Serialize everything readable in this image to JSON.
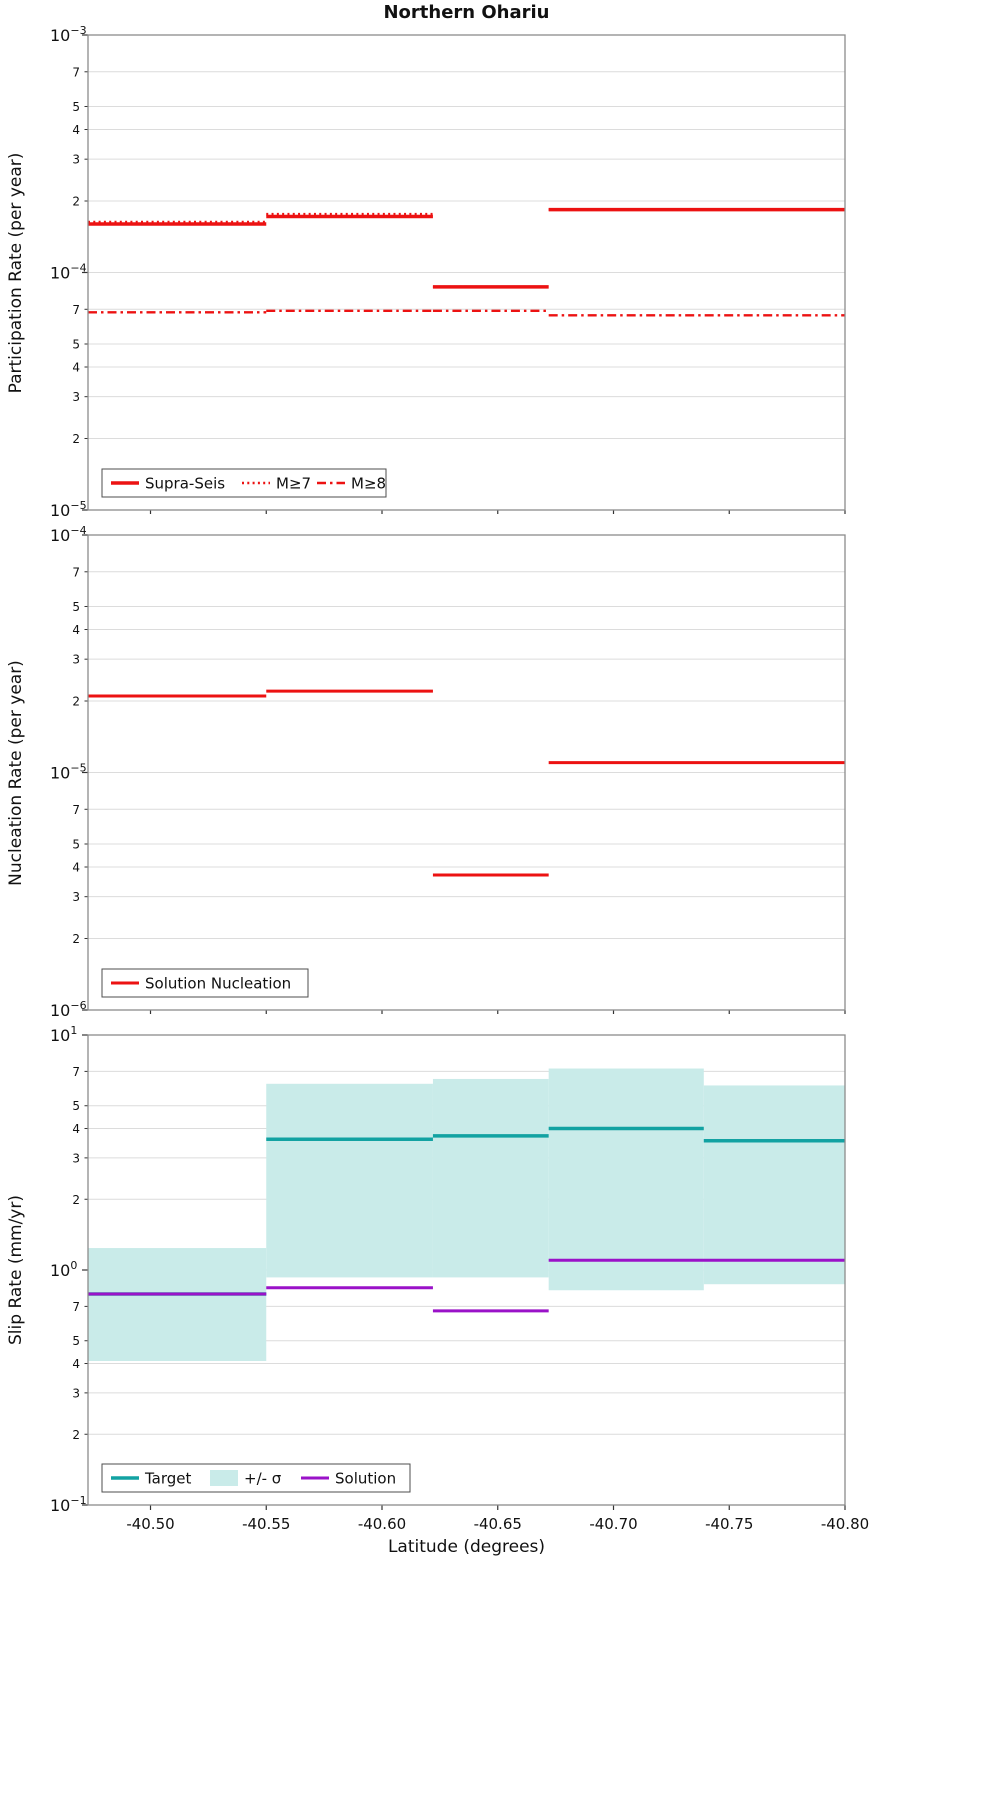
{
  "title": "Northern Ohariu",
  "xlabel": "Latitude (degrees)",
  "colors": {
    "red": "#ec1212",
    "teal": "#12a2a2",
    "band": "#c9ebe9",
    "purple": "#9a12c8",
    "grid": "#dcdcdc",
    "frame": "#8c8c8c",
    "tick": "#333333",
    "legend_border": "#4d4d4d"
  },
  "x_axis": {
    "range": [
      -40.473,
      -40.8
    ],
    "ticks": [
      {
        "value": -40.5,
        "label": "-40.50"
      },
      {
        "value": -40.55,
        "label": "-40.55"
      },
      {
        "value": -40.6,
        "label": "-40.60"
      },
      {
        "value": -40.65,
        "label": "-40.65"
      },
      {
        "value": -40.7,
        "label": "-40.70"
      },
      {
        "value": -40.75,
        "label": "-40.75"
      },
      {
        "value": -40.8,
        "label": "-40.80"
      }
    ]
  },
  "chart_data": [
    {
      "name": "participation-rate",
      "type": "line",
      "ylabel": "Participation Rate (per year)",
      "ylim": [
        1e-05,
        0.001
      ],
      "decade_exponents": [
        -3,
        -4,
        -5
      ],
      "minor_tick_labels": [
        7,
        5,
        4,
        3,
        2
      ],
      "legend": [
        "Supra-Seis",
        "M≥7",
        "M≥8"
      ],
      "series": [
        {
          "name": "Supra-Seis",
          "color": "red",
          "style": "solid",
          "width": 3.5,
          "segments": [
            [
              -40.473,
              -40.55,
              0.00016
            ],
            [
              -40.55,
              -40.622,
              0.000172
            ],
            [
              -40.622,
              -40.672,
              8.7e-05
            ],
            [
              -40.672,
              -40.8,
              0.000184
            ]
          ]
        },
        {
          "name": "M≥7",
          "color": "red",
          "style": "dotted",
          "width": 2.6,
          "segments": [
            [
              -40.473,
              -40.55,
              0.000163
            ],
            [
              -40.55,
              -40.622,
              0.000176
            ],
            [
              -40.622,
              -40.672,
              8.7e-05
            ],
            [
              -40.672,
              -40.8,
              0.000184
            ]
          ]
        },
        {
          "name": "M≥8",
          "color": "red",
          "style": "dashdot",
          "width": 2.4,
          "segments": [
            [
              -40.473,
              -40.55,
              6.8e-05
            ],
            [
              -40.55,
              -40.622,
              6.9e-05
            ],
            [
              -40.622,
              -40.672,
              6.9e-05
            ],
            [
              -40.672,
              -40.8,
              6.6e-05
            ]
          ]
        }
      ]
    },
    {
      "name": "nucleation-rate",
      "type": "line",
      "ylabel": "Nucleation Rate (per year)",
      "ylim": [
        1e-06,
        0.0001
      ],
      "decade_exponents": [
        -4,
        -5,
        -6
      ],
      "minor_tick_labels": [
        7,
        5,
        4,
        3,
        2
      ],
      "legend": [
        "Solution Nucleation"
      ],
      "series": [
        {
          "name": "Solution Nucleation",
          "color": "red",
          "style": "solid",
          "width": 3,
          "segments": [
            [
              -40.473,
              -40.55,
              2.1e-05
            ],
            [
              -40.55,
              -40.622,
              2.2e-05
            ],
            [
              -40.622,
              -40.672,
              3.7e-06
            ],
            [
              -40.672,
              -40.8,
              1.1e-05
            ]
          ]
        }
      ]
    },
    {
      "name": "slip-rate",
      "type": "line",
      "ylabel": "Slip Rate (mm/yr)",
      "ylim": [
        0.1,
        10
      ],
      "decade_exponents": [
        1,
        0,
        -1
      ],
      "minor_tick_labels": [
        7,
        5,
        4,
        3,
        2
      ],
      "legend": [
        "Target",
        "+/- σ",
        "Solution"
      ],
      "band": {
        "name": "+/- σ",
        "color": "band",
        "regions": [
          [
            -40.473,
            -40.55,
            0.41,
            1.24
          ],
          [
            -40.55,
            -40.622,
            0.93,
            6.2
          ],
          [
            -40.622,
            -40.672,
            0.93,
            6.5
          ],
          [
            -40.672,
            -40.739,
            0.82,
            7.2
          ],
          [
            -40.739,
            -40.8,
            0.87,
            6.1
          ]
        ]
      },
      "series": [
        {
          "name": "Target",
          "color": "teal",
          "style": "solid",
          "width": 3.5,
          "segments": [
            [
              -40.473,
              -40.55,
              0.79
            ],
            [
              -40.55,
              -40.622,
              3.6
            ],
            [
              -40.622,
              -40.672,
              3.72
            ],
            [
              -40.672,
              -40.739,
              4.0
            ],
            [
              -40.739,
              -40.8,
              3.55
            ]
          ]
        },
        {
          "name": "Solution",
          "color": "purple",
          "style": "solid",
          "width": 3,
          "segments": [
            [
              -40.473,
              -40.55,
              0.79
            ],
            [
              -40.55,
              -40.622,
              0.84
            ],
            [
              -40.622,
              -40.672,
              0.67
            ],
            [
              -40.672,
              -40.8,
              1.1
            ]
          ]
        }
      ]
    }
  ]
}
